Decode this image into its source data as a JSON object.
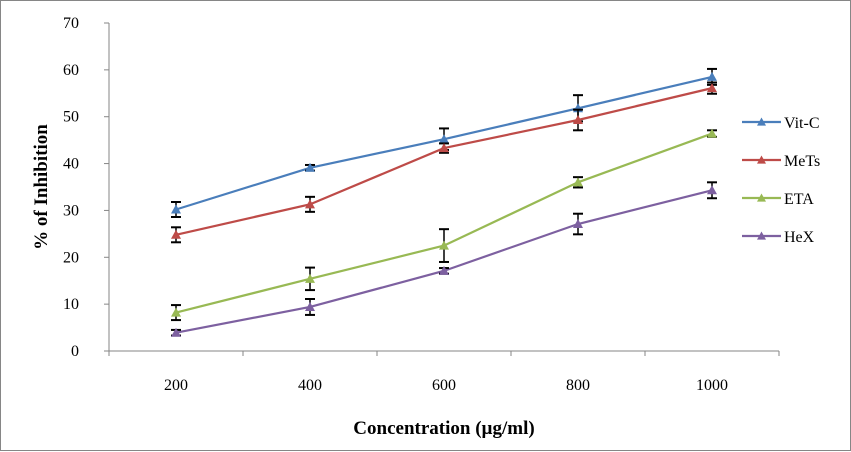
{
  "chart_data": {
    "type": "line",
    "title": "",
    "xlabel": "Concentration (µg/ml)",
    "ylabel": "% of Inhibition",
    "categories": [
      "200",
      "400",
      "600",
      "800",
      "1000"
    ],
    "ylim": [
      0,
      70
    ],
    "yticks": [
      "0",
      "10",
      "20",
      "30",
      "40",
      "50",
      "60",
      "70"
    ],
    "ytick_values": [
      0,
      10,
      20,
      30,
      40,
      50,
      60,
      70
    ],
    "grid": false,
    "legend_position": "right",
    "series": [
      {
        "name": "Vit-C",
        "color": "#4a7ebb",
        "values": [
          30.2,
          39.1,
          45.2,
          51.8,
          58.5
        ],
        "errors": [
          1.6,
          0.6,
          2.3,
          2.8,
          1.7
        ]
      },
      {
        "name": "MeTs",
        "color": "#be4b48",
        "values": [
          24.8,
          31.3,
          43.3,
          49.3,
          56.1
        ],
        "errors": [
          1.6,
          1.6,
          1.0,
          2.2,
          1.2
        ]
      },
      {
        "name": "ETA",
        "color": "#98b954",
        "values": [
          8.2,
          15.4,
          22.5,
          36.0,
          46.4
        ],
        "errors": [
          1.6,
          2.4,
          3.5,
          1.1,
          0.7
        ]
      },
      {
        "name": "HeX",
        "color": "#7d60a0",
        "values": [
          3.9,
          9.4,
          17.1,
          27.1,
          34.3
        ],
        "errors": [
          0.6,
          1.7,
          0.6,
          2.2,
          1.7
        ]
      }
    ]
  }
}
